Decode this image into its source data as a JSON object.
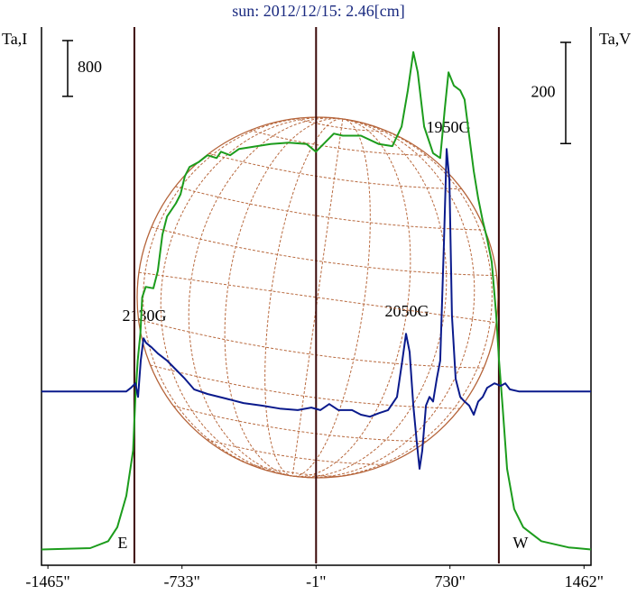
{
  "chart_data": {
    "type": "line",
    "title": "sun: 2012/12/15: 2.46[cm]",
    "y_label": "Ta,I",
    "y2_label": "Ta,V",
    "xlim": [
      -1500,
      1500
    ],
    "xticks": [
      {
        "value": -1465,
        "label": "-1465\""
      },
      {
        "value": -733,
        "label": "-733\""
      },
      {
        "value": -1,
        "label": "-1\""
      },
      {
        "value": 730,
        "label": "730\""
      },
      {
        "value": 1462,
        "label": "1462\""
      }
    ],
    "ylim": [
      -200,
      7500
    ],
    "y2lim": [
      -340,
      720
    ],
    "y_scale_bar": 800,
    "y2_scale_bar": 200,
    "limbs": [
      {
        "label": "E",
        "x": -993
      },
      {
        "label": "W",
        "x": 997
      }
    ],
    "annotations": [
      "2130G",
      "2050G",
      "1950G"
    ],
    "series": [
      {
        "color": "#1c9c1c",
        "x": [
          -1500,
          -1234,
          -1136,
          -1086,
          -1037,
          -1000,
          -987,
          -975,
          -960,
          -950,
          -931,
          -889,
          -865,
          -840,
          -815,
          -766,
          -741,
          -717,
          -692,
          -643,
          -594,
          -544,
          -520,
          -470,
          -421,
          -347,
          -249,
          -150,
          -52,
          -2,
          47,
          96,
          145,
          244,
          342,
          416,
          466,
          500,
          530,
          554,
          589,
          638,
          677,
          702,
          722,
          751,
          786,
          810,
          835,
          860,
          884,
          909,
          933,
          958,
          983,
          998,
          1017,
          1042,
          1081,
          1130,
          1229,
          1377,
          1500
        ],
        "values": [
          0,
          20,
          120,
          320,
          770,
          1420,
          2190,
          2710,
          3100,
          3620,
          3770,
          3750,
          4000,
          4520,
          4780,
          4970,
          5100,
          5360,
          5490,
          5560,
          5660,
          5620,
          5710,
          5660,
          5750,
          5780,
          5820,
          5840,
          5820,
          5710,
          5840,
          5970,
          5940,
          5940,
          5820,
          5790,
          6070,
          6590,
          7140,
          6850,
          6070,
          5690,
          5620,
          6330,
          6850,
          6660,
          6590,
          6460,
          5940,
          5430,
          5040,
          4720,
          4460,
          4130,
          3360,
          2710,
          2060,
          1160,
          580,
          320,
          120,
          30,
          0
        ]
      },
      {
        "color": "#0a1a8c",
        "axis": "y2",
        "x": [
          -1500,
          -1037,
          -1012,
          -987,
          -973,
          -958,
          -943,
          -929,
          -899,
          -865,
          -815,
          -766,
          -717,
          -667,
          -594,
          -495,
          -397,
          -298,
          -200,
          -101,
          -27,
          22,
          71,
          121,
          195,
          244,
          293,
          342,
          392,
          441,
          470,
          490,
          510,
          530,
          549,
          564,
          579,
          599,
          618,
          638,
          658,
          677,
          697,
          712,
          727,
          741,
          761,
          786,
          810,
          835,
          860,
          884,
          909,
          933,
          973,
          1007,
          1032,
          1057,
          1106,
          1500
        ],
        "values": [
          0,
          0,
          7,
          16,
          -11,
          61,
          105,
          96,
          87,
          75,
          61,
          43,
          25,
          4,
          -5,
          -14,
          -23,
          -28,
          -34,
          -37,
          -32,
          -37,
          -25,
          -37,
          -37,
          -46,
          -50,
          -43,
          -37,
          -11,
          61,
          114,
          78,
          -28,
          -100,
          -153,
          -117,
          -28,
          -11,
          -20,
          25,
          61,
          292,
          479,
          417,
          150,
          25,
          -11,
          -20,
          -28,
          -46,
          -20,
          -11,
          7,
          16,
          11,
          16,
          4,
          0,
          0
        ]
      }
    ]
  }
}
